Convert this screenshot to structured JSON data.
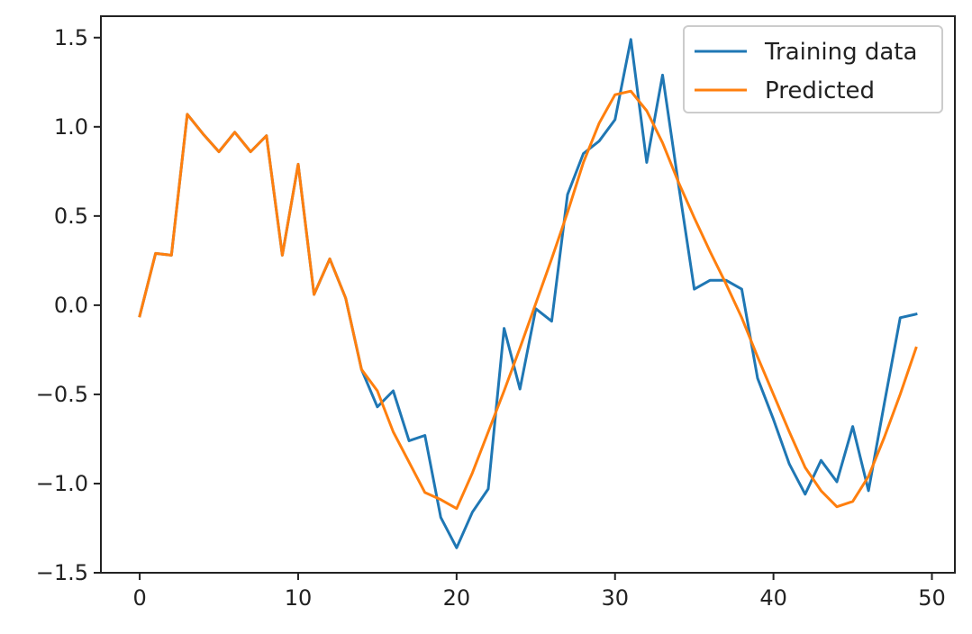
{
  "chart_data": {
    "type": "line",
    "title": "",
    "xlabel": "",
    "ylabel": "",
    "xlim": [
      -2.45,
      51.45
    ],
    "ylim": [
      -1.5,
      1.62
    ],
    "xticks": [
      0,
      10,
      20,
      30,
      40,
      50
    ],
    "xtick_labels": [
      "0",
      "10",
      "20",
      "30",
      "40",
      "50"
    ],
    "yticks": [
      -1.5,
      -1.0,
      -0.5,
      0.0,
      0.5,
      1.0,
      1.5
    ],
    "ytick_labels": [
      "−1.5",
      "−1.0",
      "−0.5",
      "0.0",
      "0.5",
      "1.0",
      "1.5"
    ],
    "grid": false,
    "legend_position": "top-right",
    "x": [
      0,
      1,
      2,
      3,
      4,
      5,
      6,
      7,
      8,
      9,
      10,
      11,
      12,
      13,
      14,
      15,
      16,
      17,
      18,
      19,
      20,
      21,
      22,
      23,
      24,
      25,
      26,
      27,
      28,
      29,
      30,
      31,
      32,
      33,
      34,
      35,
      36,
      37,
      38,
      39,
      40,
      41,
      42,
      43,
      44,
      45,
      46,
      47,
      48,
      49
    ],
    "series": [
      {
        "name": "Training data",
        "color": "#1f77b4",
        "values": [
          -0.06,
          0.29,
          0.28,
          1.07,
          0.96,
          0.86,
          0.97,
          0.86,
          0.95,
          0.28,
          0.79,
          0.06,
          0.26,
          0.04,
          -0.36,
          -0.57,
          -0.48,
          -0.76,
          -0.73,
          -1.19,
          -1.36,
          -1.16,
          -1.03,
          -0.13,
          -0.47,
          -0.02,
          -0.09,
          0.62,
          0.85,
          0.92,
          1.04,
          1.49,
          0.8,
          1.29,
          0.68,
          0.09,
          0.14,
          0.14,
          0.09,
          -0.41,
          -0.64,
          -0.89,
          -1.06,
          -0.87,
          -0.99,
          -0.68,
          -1.04,
          -0.55,
          -0.07,
          -0.05
        ]
      },
      {
        "name": "Predicted",
        "color": "#ff7f0e",
        "values": [
          -0.06,
          0.29,
          0.28,
          1.07,
          0.96,
          0.86,
          0.97,
          0.86,
          0.95,
          0.28,
          0.79,
          0.06,
          0.26,
          0.04,
          -0.36,
          -0.48,
          -0.71,
          -0.88,
          -1.05,
          -1.09,
          -1.14,
          -0.94,
          -0.71,
          -0.48,
          -0.24,
          0.01,
          0.26,
          0.52,
          0.8,
          1.02,
          1.18,
          1.2,
          1.09,
          0.91,
          0.69,
          0.49,
          0.3,
          0.12,
          -0.07,
          -0.29,
          -0.5,
          -0.71,
          -0.91,
          -1.04,
          -1.13,
          -1.1,
          -0.96,
          -0.74,
          -0.5,
          -0.24
        ]
      }
    ]
  }
}
